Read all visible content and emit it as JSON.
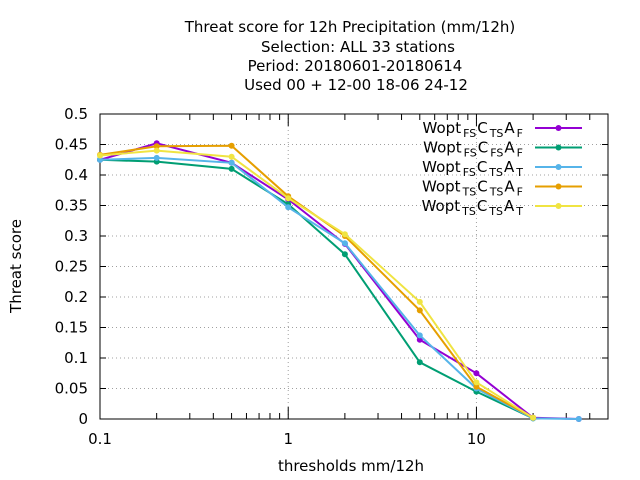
{
  "chart_data": {
    "type": "line",
    "title_lines": [
      "Threat score  for 12h Precipitation (mm/12h)",
      "Selection: ALL     33 stations",
      "Period: 20180601-20180614",
      "Used  00 + 12-00 18-06 24-12"
    ],
    "xlabel": "thresholds mm/12h",
    "ylabel": "Threat score",
    "x_scale": "log",
    "xlim": [
      0.1,
      50
    ],
    "ylim": [
      0,
      0.5
    ],
    "x_ticks": [
      0.1,
      1,
      10
    ],
    "x_tick_labels": [
      "0.1",
      "1",
      "10"
    ],
    "y_ticks": [
      0,
      0.05,
      0.1,
      0.15,
      0.2,
      0.25,
      0.3,
      0.35,
      0.4,
      0.45,
      0.5
    ],
    "y_tick_labels": [
      "0",
      "0.05",
      "0.1",
      "0.15",
      "0.2",
      "0.25",
      "0.3",
      "0.35",
      "0.4",
      "0.45",
      "0.5"
    ],
    "grid": true,
    "legend_position": "top-right",
    "x": [
      0.1,
      0.2,
      0.5,
      1,
      2,
      5,
      10,
      20,
      35
    ],
    "series": [
      {
        "legend": {
          "base1": "Wopt",
          "sub1": "FS",
          "base2": "C",
          "sub2": "TS",
          "base3": "A",
          "sub3": "F"
        },
        "color": "#9400d3",
        "values": [
          0.425,
          0.452,
          0.42,
          0.36,
          0.287,
          0.13,
          0.075,
          0.002,
          0.0
        ]
      },
      {
        "legend": {
          "base1": "Wopt",
          "sub1": "FS",
          "base2": "C",
          "sub2": "FS",
          "base3": "A",
          "sub3": "F"
        },
        "color": "#009e73",
        "values": [
          0.425,
          0.422,
          0.41,
          0.352,
          0.27,
          0.093,
          0.045,
          0.001,
          null
        ]
      },
      {
        "legend": {
          "base1": "Wopt",
          "sub1": "FS",
          "base2": "C",
          "sub2": "TS",
          "base3": "A",
          "sub3": "T"
        },
        "color": "#56b4e9",
        "values": [
          0.425,
          0.428,
          0.42,
          0.347,
          0.288,
          0.137,
          0.05,
          0.001,
          0.0
        ]
      },
      {
        "legend": {
          "base1": "Wopt",
          "sub1": "TS",
          "base2": "C",
          "sub2": "TS",
          "base3": "A",
          "sub3": "F"
        },
        "color": "#e69f00",
        "values": [
          0.433,
          0.447,
          0.448,
          0.365,
          0.3,
          0.178,
          0.053,
          0.002,
          null
        ]
      },
      {
        "legend": {
          "base1": "Wopt",
          "sub1": "TS",
          "base2": "C",
          "sub2": "TS",
          "base3": "A",
          "sub3": "T"
        },
        "color": "#f0e442",
        "values": [
          0.432,
          0.44,
          0.43,
          0.362,
          0.303,
          0.192,
          0.06,
          0.002,
          null
        ]
      }
    ]
  }
}
